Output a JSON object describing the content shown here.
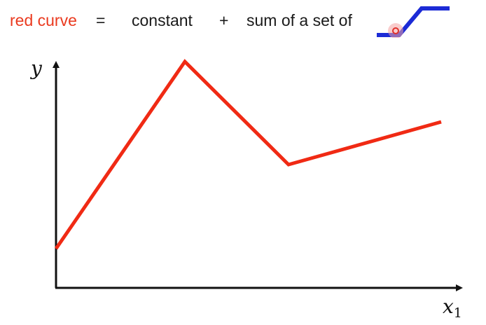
{
  "equation": {
    "term1": "red curve",
    "eq": "=",
    "term2": "constant",
    "plus": "+",
    "term3": "sum of a set of",
    "icon": "hard-sigmoid-icon",
    "icon_color": "#1c2bd6",
    "term1_color": "#ea3a1f"
  },
  "chart": {
    "y_axis_label": "y",
    "x_axis_label": "x",
    "x_axis_subscript": "1",
    "curve_color": "#f02a14",
    "axis_color": "#111111"
  }
}
